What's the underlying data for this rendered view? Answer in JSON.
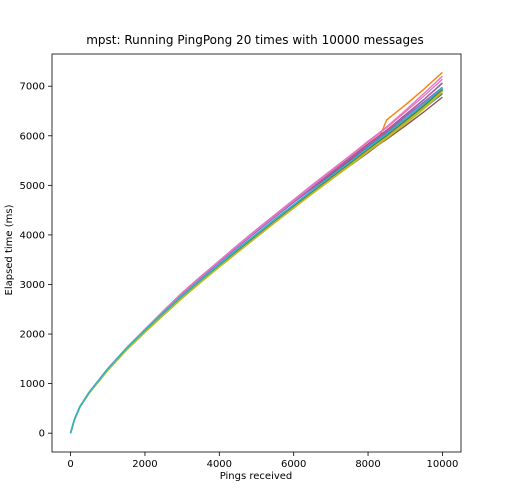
{
  "chart_data": {
    "type": "line",
    "title": "mpst: Running PingPong 20 times with 10000 messages",
    "xlabel": "Pings received",
    "ylabel": "Elapsed time (ms)",
    "xlim": [
      -500,
      10500
    ],
    "ylim": [
      -380,
      7650
    ],
    "xticks": [
      0,
      2000,
      4000,
      6000,
      8000,
      10000
    ],
    "yticks": [
      0,
      1000,
      2000,
      3000,
      4000,
      5000,
      6000,
      7000
    ],
    "xtick_labels": [
      "0",
      "2000",
      "4000",
      "6000",
      "8000",
      "10000"
    ],
    "ytick_labels": [
      "0",
      "1000",
      "2000",
      "3000",
      "4000",
      "5000",
      "6000",
      "7000"
    ],
    "grid": false,
    "legend": "none",
    "x": [
      0,
      100,
      250,
      500,
      1000,
      1500,
      2000,
      2500,
      3000,
      3500,
      4000,
      4500,
      5000,
      5500,
      6000,
      6500,
      7000,
      7500,
      8000,
      8300,
      8500,
      9000,
      9500,
      10000
    ],
    "series": [
      {
        "color": "#1f77b4",
        "values": [
          0,
          270,
          530,
          820,
          1290,
          1700,
          2060,
          2420,
          2750,
          3070,
          3380,
          3680,
          3990,
          4280,
          4570,
          4860,
          5140,
          5420,
          5710,
          5870,
          5980,
          6270,
          6550,
          6850
        ]
      },
      {
        "color": "#ff7f0e",
        "values": [
          0,
          265,
          525,
          810,
          1270,
          1680,
          2050,
          2410,
          2740,
          3060,
          3370,
          3680,
          3990,
          4290,
          4590,
          4880,
          5170,
          5460,
          5760,
          5950,
          6320,
          6620,
          6940,
          7280
        ]
      },
      {
        "color": "#2ca02c",
        "values": [
          0,
          268,
          528,
          815,
          1280,
          1690,
          2050,
          2400,
          2740,
          3060,
          3360,
          3660,
          3960,
          4260,
          4550,
          4840,
          5120,
          5410,
          5700,
          5860,
          5960,
          6250,
          6550,
          6900
        ]
      },
      {
        "color": "#d62728",
        "values": [
          0,
          272,
          535,
          825,
          1300,
          1710,
          2090,
          2470,
          2830,
          3160,
          3470,
          3780,
          4080,
          4370,
          4660,
          4940,
          5220,
          5500,
          5780,
          5950,
          6060,
          6340,
          6620,
          6920
        ]
      },
      {
        "color": "#9467bd",
        "values": [
          0,
          270,
          532,
          822,
          1295,
          1705,
          2080,
          2450,
          2810,
          3140,
          3460,
          3770,
          4070,
          4370,
          4660,
          4950,
          5240,
          5520,
          5800,
          5970,
          6080,
          6380,
          6680,
          6980
        ]
      },
      {
        "color": "#8c564b",
        "values": [
          0,
          266,
          526,
          812,
          1275,
          1685,
          2050,
          2410,
          2740,
          3060,
          3370,
          3670,
          3970,
          4270,
          4560,
          4840,
          5120,
          5390,
          5660,
          5830,
          5930,
          6200,
          6480,
          6780
        ]
      },
      {
        "color": "#e377c2",
        "values": [
          0,
          274,
          538,
          830,
          1305,
          1720,
          2100,
          2470,
          2820,
          3160,
          3480,
          3800,
          4110,
          4410,
          4710,
          5010,
          5300,
          5590,
          5890,
          6060,
          6180,
          6510,
          6850,
          7200
        ]
      },
      {
        "color": "#7f7f7f",
        "values": [
          0,
          269,
          530,
          818,
          1285,
          1695,
          2060,
          2420,
          2760,
          3080,
          3390,
          3700,
          4000,
          4300,
          4590,
          4880,
          5170,
          5450,
          5740,
          5910,
          6020,
          6320,
          6620,
          6940
        ]
      },
      {
        "color": "#bcbd22",
        "values": [
          0,
          264,
          522,
          805,
          1265,
          1670,
          2030,
          2380,
          2720,
          3040,
          3350,
          3650,
          3950,
          4250,
          4540,
          4830,
          5110,
          5390,
          5680,
          5840,
          5950,
          6240,
          6540,
          6880
        ]
      },
      {
        "color": "#17becf",
        "values": [
          0,
          271,
          534,
          824,
          1295,
          1710,
          2080,
          2440,
          2780,
          3100,
          3410,
          3720,
          4020,
          4320,
          4610,
          4900,
          5190,
          5470,
          5760,
          5930,
          6040,
          6340,
          6640,
          6960
        ]
      },
      {
        "color": "#1f77b4",
        "values": [
          0,
          267,
          529,
          816,
          1282,
          1692,
          2055,
          2410,
          2750,
          3070,
          3380,
          3690,
          3990,
          4290,
          4580,
          4870,
          5160,
          5440,
          5730,
          5900,
          6010,
          6300,
          6600,
          6920
        ]
      },
      {
        "color": "#ff7f0e",
        "values": [
          0,
          270,
          531,
          820,
          1288,
          1698,
          2065,
          2425,
          2765,
          3085,
          3395,
          3705,
          4005,
          4305,
          4600,
          4890,
          5180,
          5460,
          5750,
          5920,
          6030,
          6330,
          6640,
          6970
        ]
      },
      {
        "color": "#2ca02c",
        "values": [
          0,
          268,
          527,
          814,
          1280,
          1688,
          2052,
          2405,
          2745,
          3065,
          3375,
          3680,
          3980,
          4280,
          4570,
          4860,
          5150,
          5430,
          5720,
          5890,
          6000,
          6300,
          6600,
          6930
        ]
      },
      {
        "color": "#d62728",
        "values": [
          0,
          272,
          536,
          826,
          1298,
          1712,
          2085,
          2455,
          2815,
          3145,
          3465,
          3775,
          4080,
          4380,
          4675,
          4965,
          5255,
          5540,
          5830,
          6000,
          6110,
          6420,
          6730,
          7060
        ]
      },
      {
        "color": "#9467bd",
        "values": [
          0,
          271,
          533,
          823,
          1293,
          1706,
          2078,
          2445,
          2800,
          3130,
          3450,
          3760,
          4065,
          4365,
          4660,
          4950,
          5240,
          5525,
          5815,
          5985,
          6095,
          6410,
          6730,
          7070
        ]
      },
      {
        "color": "#8c564b",
        "values": [
          0,
          269,
          530,
          818,
          1285,
          1695,
          2060,
          2420,
          2760,
          3080,
          3390,
          3695,
          3995,
          4295,
          4585,
          4875,
          5165,
          5445,
          5735,
          5905,
          6015,
          6315,
          6615,
          6950
        ]
      },
      {
        "color": "#e377c2",
        "values": [
          0,
          273,
          537,
          828,
          1302,
          1716,
          2095,
          2465,
          2820,
          3150,
          3470,
          3785,
          4090,
          4390,
          4690,
          4985,
          5280,
          5570,
          5870,
          6045,
          6160,
          6480,
          6800,
          7140
        ]
      },
      {
        "color": "#7f7f7f",
        "values": [
          0,
          270,
          531,
          820,
          1288,
          1698,
          2064,
          2424,
          2764,
          3084,
          3394,
          3704,
          4004,
          4304,
          4598,
          4888,
          5178,
          5458,
          5748,
          5918,
          6028,
          6328,
          6628,
          6960
        ]
      },
      {
        "color": "#bcbd22",
        "values": [
          0,
          266,
          524,
          808,
          1270,
          1676,
          2036,
          2388,
          2728,
          3048,
          3358,
          3660,
          3960,
          4260,
          4550,
          4840,
          5125,
          5405,
          5695,
          5860,
          5970,
          6265,
          6565,
          6900
        ]
      },
      {
        "color": "#17becf",
        "values": [
          0,
          271,
          534,
          824,
          1294,
          1708,
          2078,
          2438,
          2778,
          3098,
          3408,
          3718,
          4018,
          4318,
          4608,
          4898,
          5188,
          5468,
          5758,
          5928,
          6038,
          6338,
          6638,
          6975
        ]
      }
    ]
  }
}
